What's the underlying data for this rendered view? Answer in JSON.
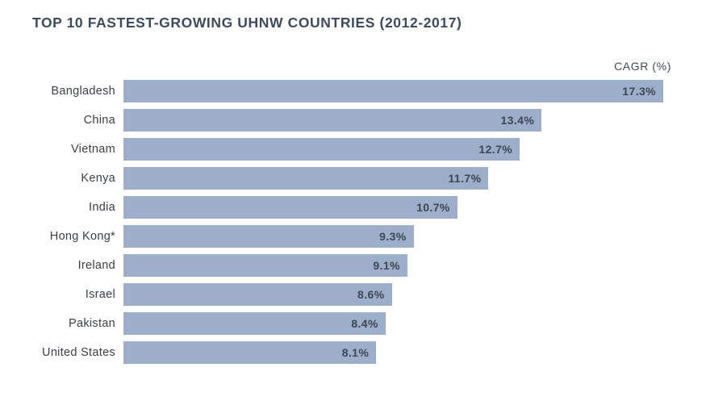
{
  "header": {
    "title": "TOP 10 FASTEST-GROWING UHNW COUNTRIES (2012-2017)"
  },
  "chart_data": {
    "type": "bar",
    "orientation": "horizontal",
    "title": "TOP 10 FASTEST-GROWING UHNW COUNTRIES (2012-2017)",
    "xlabel": "CAGR (%)",
    "ylabel": "",
    "axis_label": "CAGR (%)",
    "categories": [
      "Bangladesh",
      "China",
      "Vietnam",
      "Kenya",
      "India",
      "Hong Kong*",
      "Ireland",
      "Israel",
      "Pakistan",
      "United States"
    ],
    "values": [
      17.3,
      13.4,
      12.7,
      11.7,
      10.7,
      9.3,
      9.1,
      8.6,
      8.4,
      8.1
    ],
    "value_labels": [
      "17.3%",
      "13.4%",
      "12.7%",
      "11.7%",
      "10.7%",
      "9.3%",
      "9.1%",
      "8.6%",
      "8.4%",
      "8.1%"
    ],
    "xlim": [
      0,
      17.3
    ],
    "grid": false,
    "legend": "none",
    "bar_color": "#9caec9"
  },
  "colors": {
    "background": "#ffffff",
    "bar": "#9caec9",
    "title_text": "#3e4b5e",
    "value_text": "#3d4654",
    "label_text": "#3a3f46"
  }
}
